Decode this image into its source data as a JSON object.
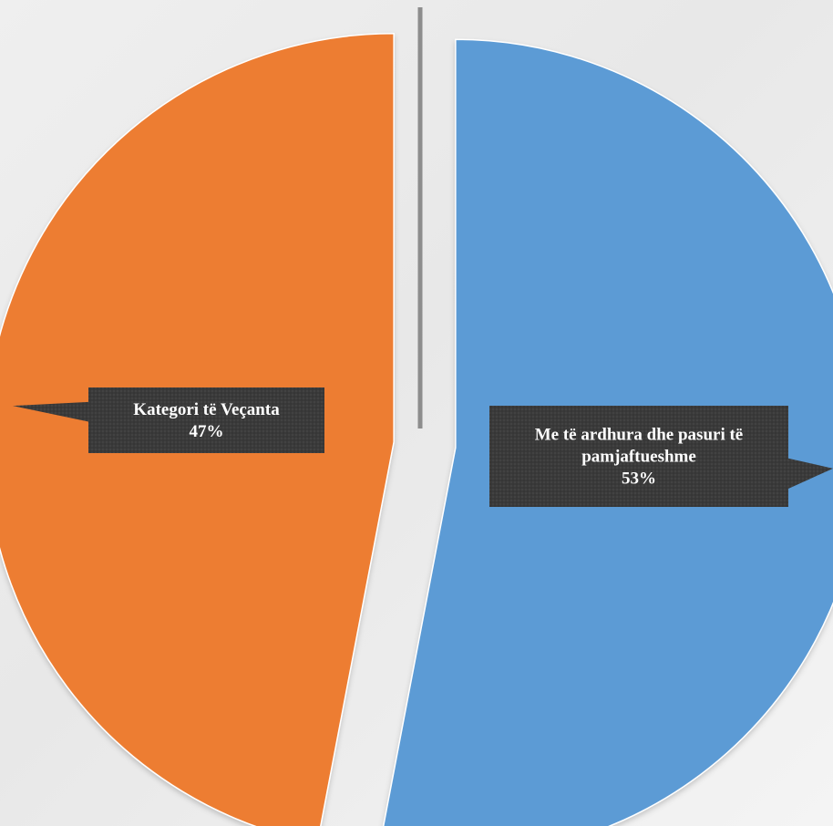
{
  "chart_data": {
    "type": "pie",
    "title": "",
    "slices": [
      {
        "label": "Me të ardhura dhe pasuri të pamjaftueshme",
        "value": 53,
        "value_label": "53%",
        "color": "#5B9BD5"
      },
      {
        "label": "Kategori të Veçanta",
        "value": 47,
        "value_label": "47%",
        "color": "#ED7D31"
      }
    ],
    "data_labels": [
      {
        "lines": [
          "Me të ardhura dhe pasuri të",
          "pamjaftueshme",
          "53%"
        ]
      },
      {
        "lines": [
          "Kategori të Veçanta",
          "47%"
        ]
      }
    ],
    "label_box_color": "#3a3a3a",
    "exploded": true,
    "legend": "none"
  }
}
